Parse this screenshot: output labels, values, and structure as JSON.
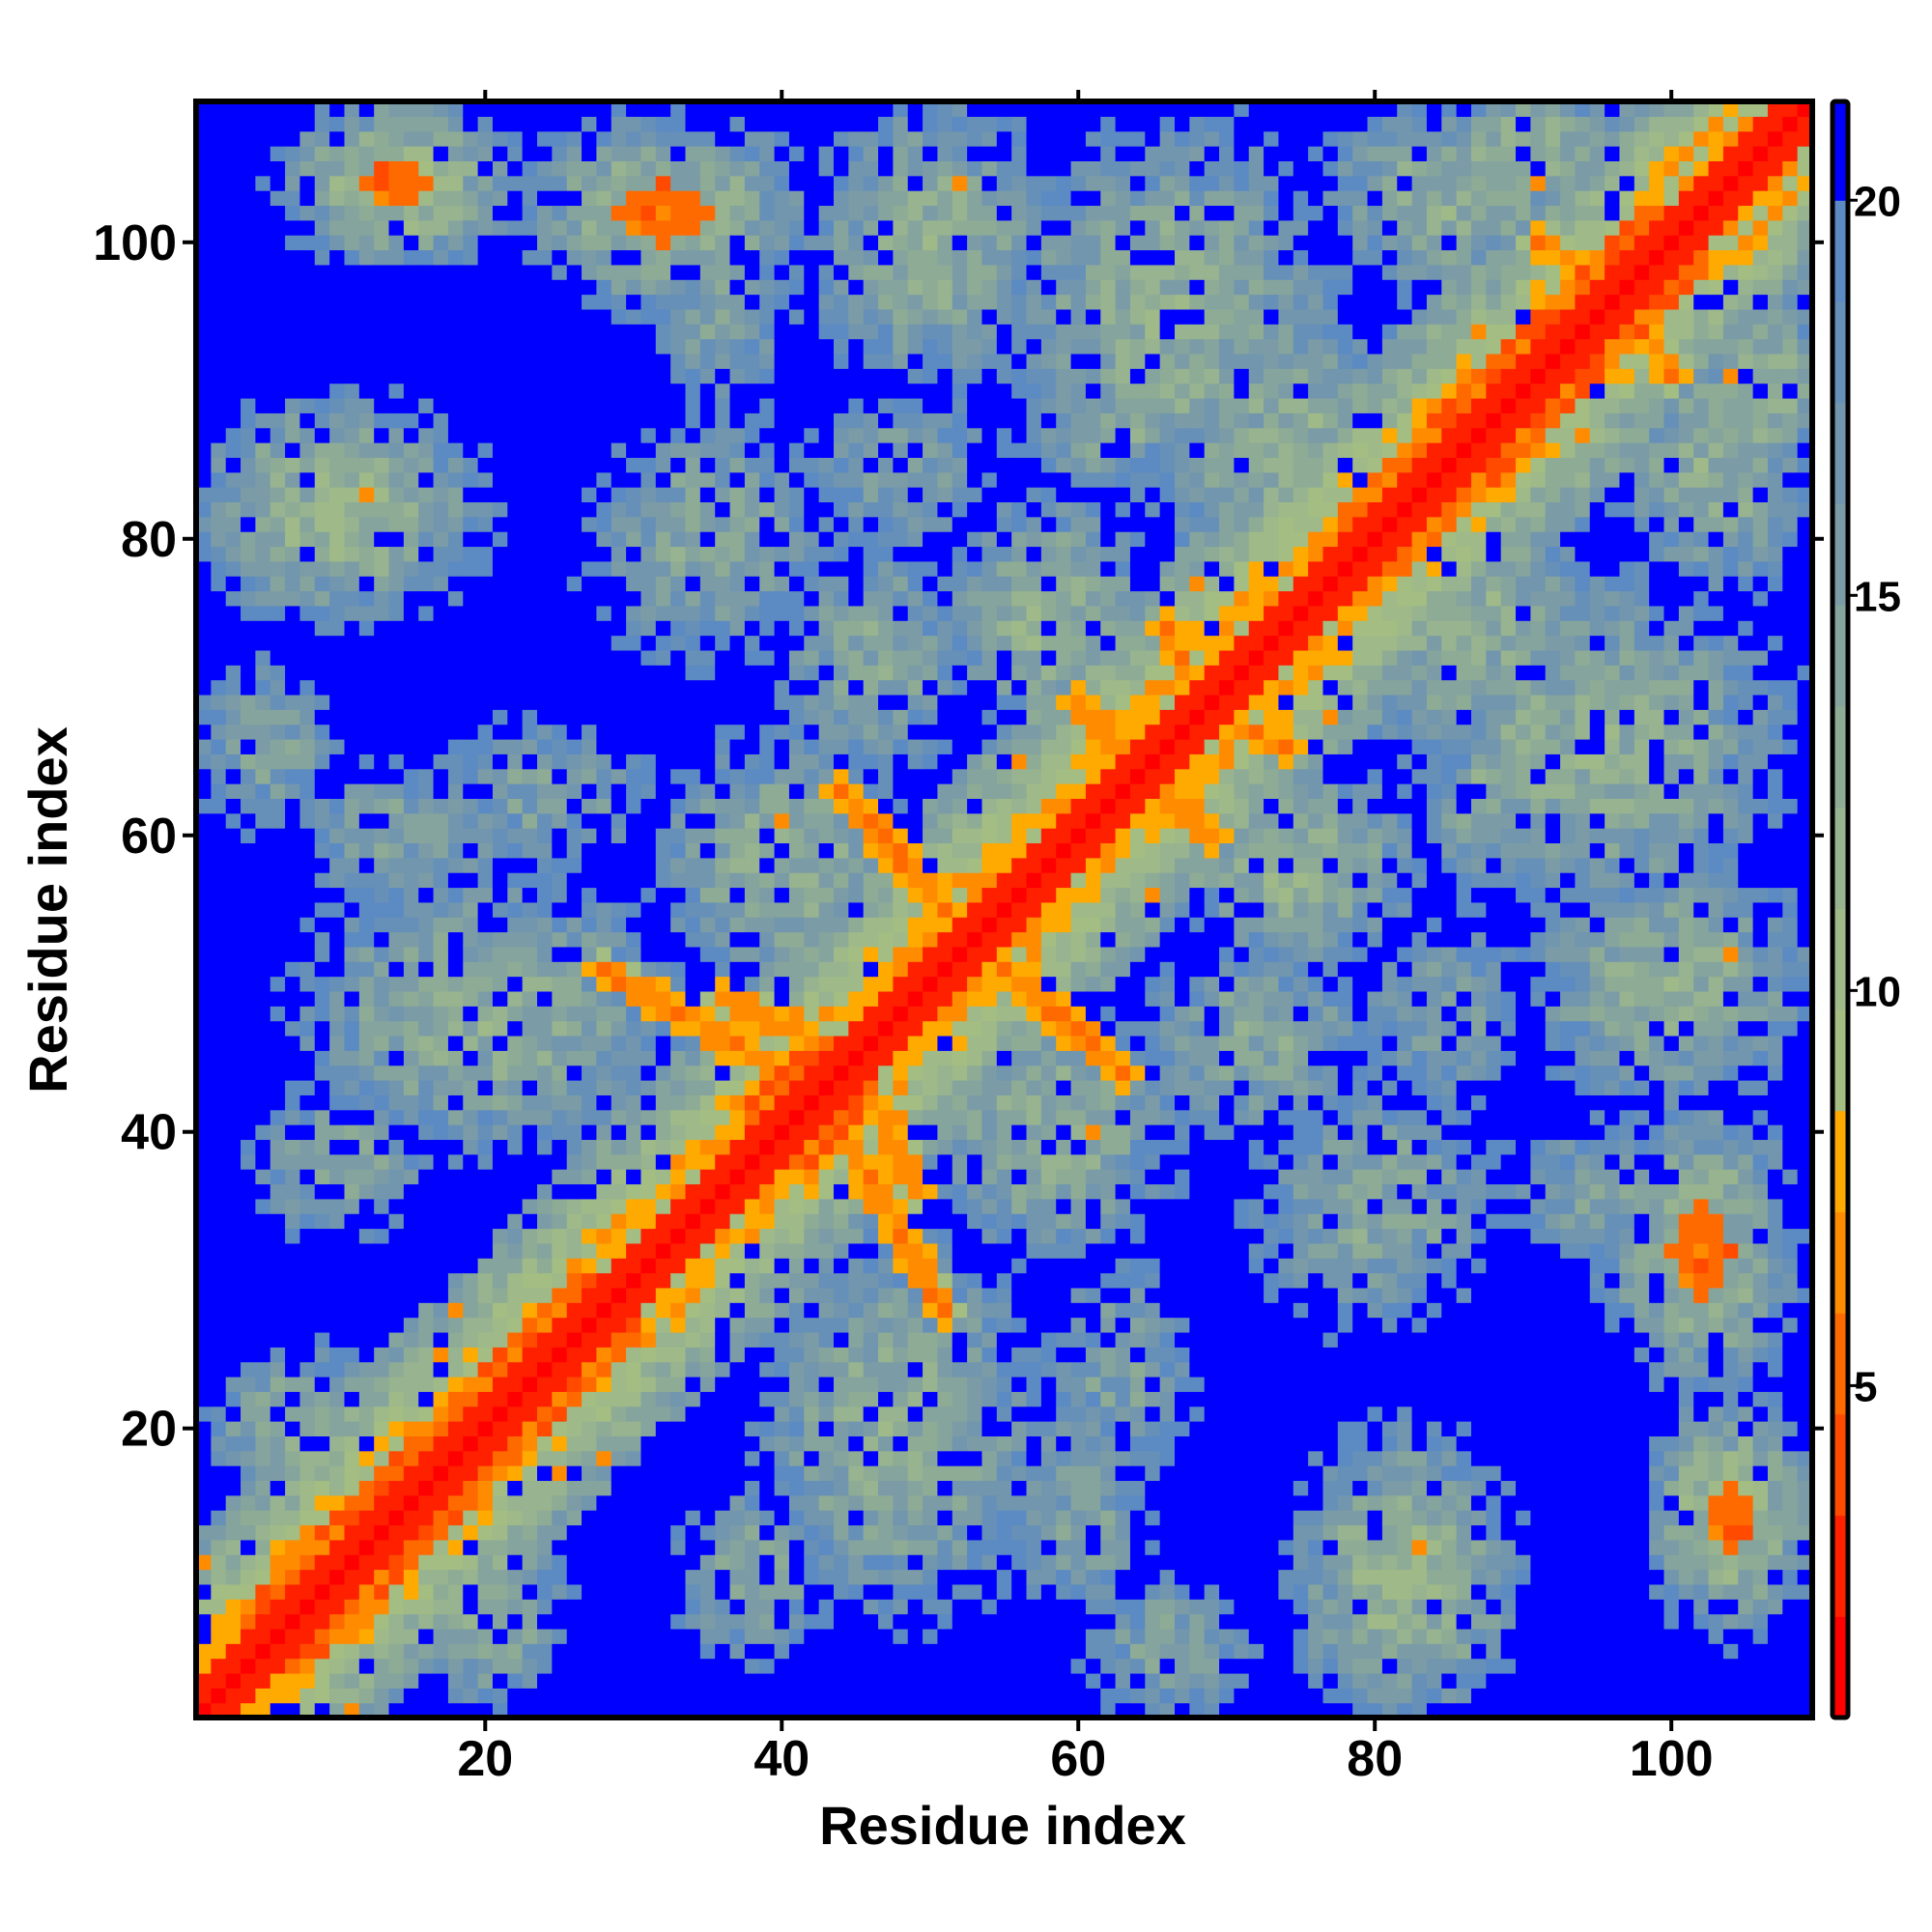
{
  "chart_data": {
    "type": "heatmap",
    "title": "",
    "xlabel": "Residue index",
    "ylabel": "Residue index",
    "n_residues": 109,
    "xlim": [
      0.5,
      109.5
    ],
    "ylim": [
      0.5,
      109.5
    ],
    "x_ticks": [
      20,
      40,
      60,
      80,
      100
    ],
    "y_ticks": [
      20,
      40,
      60,
      80,
      100
    ],
    "symmetric": true,
    "value_meaning": "pairwise residue distance",
    "colorbar": {
      "range": [
        0.8,
        21.25
      ],
      "ticks": [
        5,
        10,
        15,
        20
      ],
      "bands": [
        {
          "max": 2.08,
          "color": "#ff0000"
        },
        {
          "max": 3.36,
          "color": "#ff2000"
        },
        {
          "max": 4.64,
          "color": "#ff4a00"
        },
        {
          "max": 5.92,
          "color": "#ff6a00"
        },
        {
          "max": 7.2,
          "color": "#ff8c00"
        },
        {
          "max": 8.48,
          "color": "#ffaa00"
        },
        {
          "max": 9.76,
          "color": "#a3bd82"
        },
        {
          "max": 11.04,
          "color": "#9fba88"
        },
        {
          "max": 12.32,
          "color": "#97b38f"
        },
        {
          "max": 13.6,
          "color": "#8eab96"
        },
        {
          "max": 14.88,
          "color": "#85a49d"
        },
        {
          "max": 16.16,
          "color": "#7b9ca6"
        },
        {
          "max": 17.44,
          "color": "#7196ae"
        },
        {
          "max": 18.72,
          "color": "#6690b8"
        },
        {
          "max": 20.0,
          "color": "#5c8ac2"
        },
        {
          "max": 99,
          "color": "#0000ff"
        }
      ]
    },
    "contact_features": {
      "helix_segments": [
        [
          4,
          30
        ],
        [
          38,
          46
        ],
        [
          78,
          102
        ]
      ],
      "domains": [
        {
          "i": 10,
          "j": 82,
          "ri": 9,
          "rj": 7,
          "d": 12
        },
        {
          "i": 14,
          "j": 104,
          "ri": 7,
          "rj": 5,
          "d": 11,
          "core": true
        },
        {
          "i": 32,
          "j": 102,
          "ri": 9,
          "rj": 6,
          "d": 12,
          "core": true
        },
        {
          "i": 5,
          "j": 66,
          "ri": 5,
          "rj": 6,
          "d": 15
        },
        {
          "i": 14,
          "j": 60,
          "ri": 8,
          "rj": 5,
          "d": 15
        },
        {
          "i": 20,
          "j": 48,
          "ri": 12,
          "rj": 9,
          "d": 13
        },
        {
          "i": 10,
          "j": 38,
          "ri": 6,
          "rj": 5,
          "d": 14
        },
        {
          "i": 50,
          "j": 100,
          "ri": 8,
          "rj": 9,
          "d": 13
        },
        {
          "i": 66,
          "j": 95,
          "ri": 11,
          "rj": 12,
          "d": 13
        },
        {
          "i": 35,
          "j": 80,
          "ri": 8,
          "rj": 8,
          "d": 14
        },
        {
          "i": 36,
          "j": 96,
          "ri": 5,
          "rj": 8,
          "d": 15
        },
        {
          "i": 46,
          "j": 72,
          "ri": 6,
          "rj": 8,
          "d": 14
        },
        {
          "i": 24,
          "j": 63,
          "ri": 8,
          "rj": 5,
          "d": 15
        },
        {
          "i": 85,
          "j": 103,
          "ri": 8,
          "rj": 6,
          "d": 13
        },
        {
          "i": 75,
          "j": 86,
          "ri": 10,
          "rj": 8,
          "d": 13
        },
        {
          "i": 58,
          "j": 75,
          "ri": 6,
          "rj": 7,
          "d": 12
        },
        {
          "i": 62,
          "j": 88,
          "ri": 6,
          "rj": 5,
          "d": 14
        },
        {
          "i": 40,
          "j": 58,
          "ri": 8,
          "rj": 8,
          "d": 13
        },
        {
          "i": 8,
          "j": 20,
          "ri": 6,
          "rj": 5,
          "d": 13
        },
        {
          "i": 48,
          "j": 85,
          "ri": 6,
          "rj": 6,
          "d": 15
        },
        {
          "i": 90,
          "j": 106,
          "ri": 6,
          "rj": 4,
          "d": 12
        }
      ],
      "close_contacts": [
        {
          "from": [
            44,
            63
          ],
          "to": [
            51,
            55
          ],
          "d": 5.5
        },
        {
          "from": [
            28,
            51
          ],
          "to": [
            40,
            44
          ],
          "d": 5.8
        },
        {
          "from": [
            36,
            49
          ],
          "to": [
            41,
            47
          ],
          "d": 6.0
        },
        {
          "from": [
            60,
            69
          ],
          "to": [
            63,
            65
          ],
          "d": 5.8
        },
        {
          "from": [
            66,
            74
          ],
          "to": [
            68,
            70
          ],
          "d": 6.0
        },
        {
          "from": [
            91,
            100
          ],
          "to": [
            94,
            98
          ],
          "d": 6.2
        },
        {
          "from": [
            84,
            89
          ],
          "to": [
            88,
            86
          ],
          "d": 6.0
        }
      ],
      "noise_seed": 7
    }
  }
}
